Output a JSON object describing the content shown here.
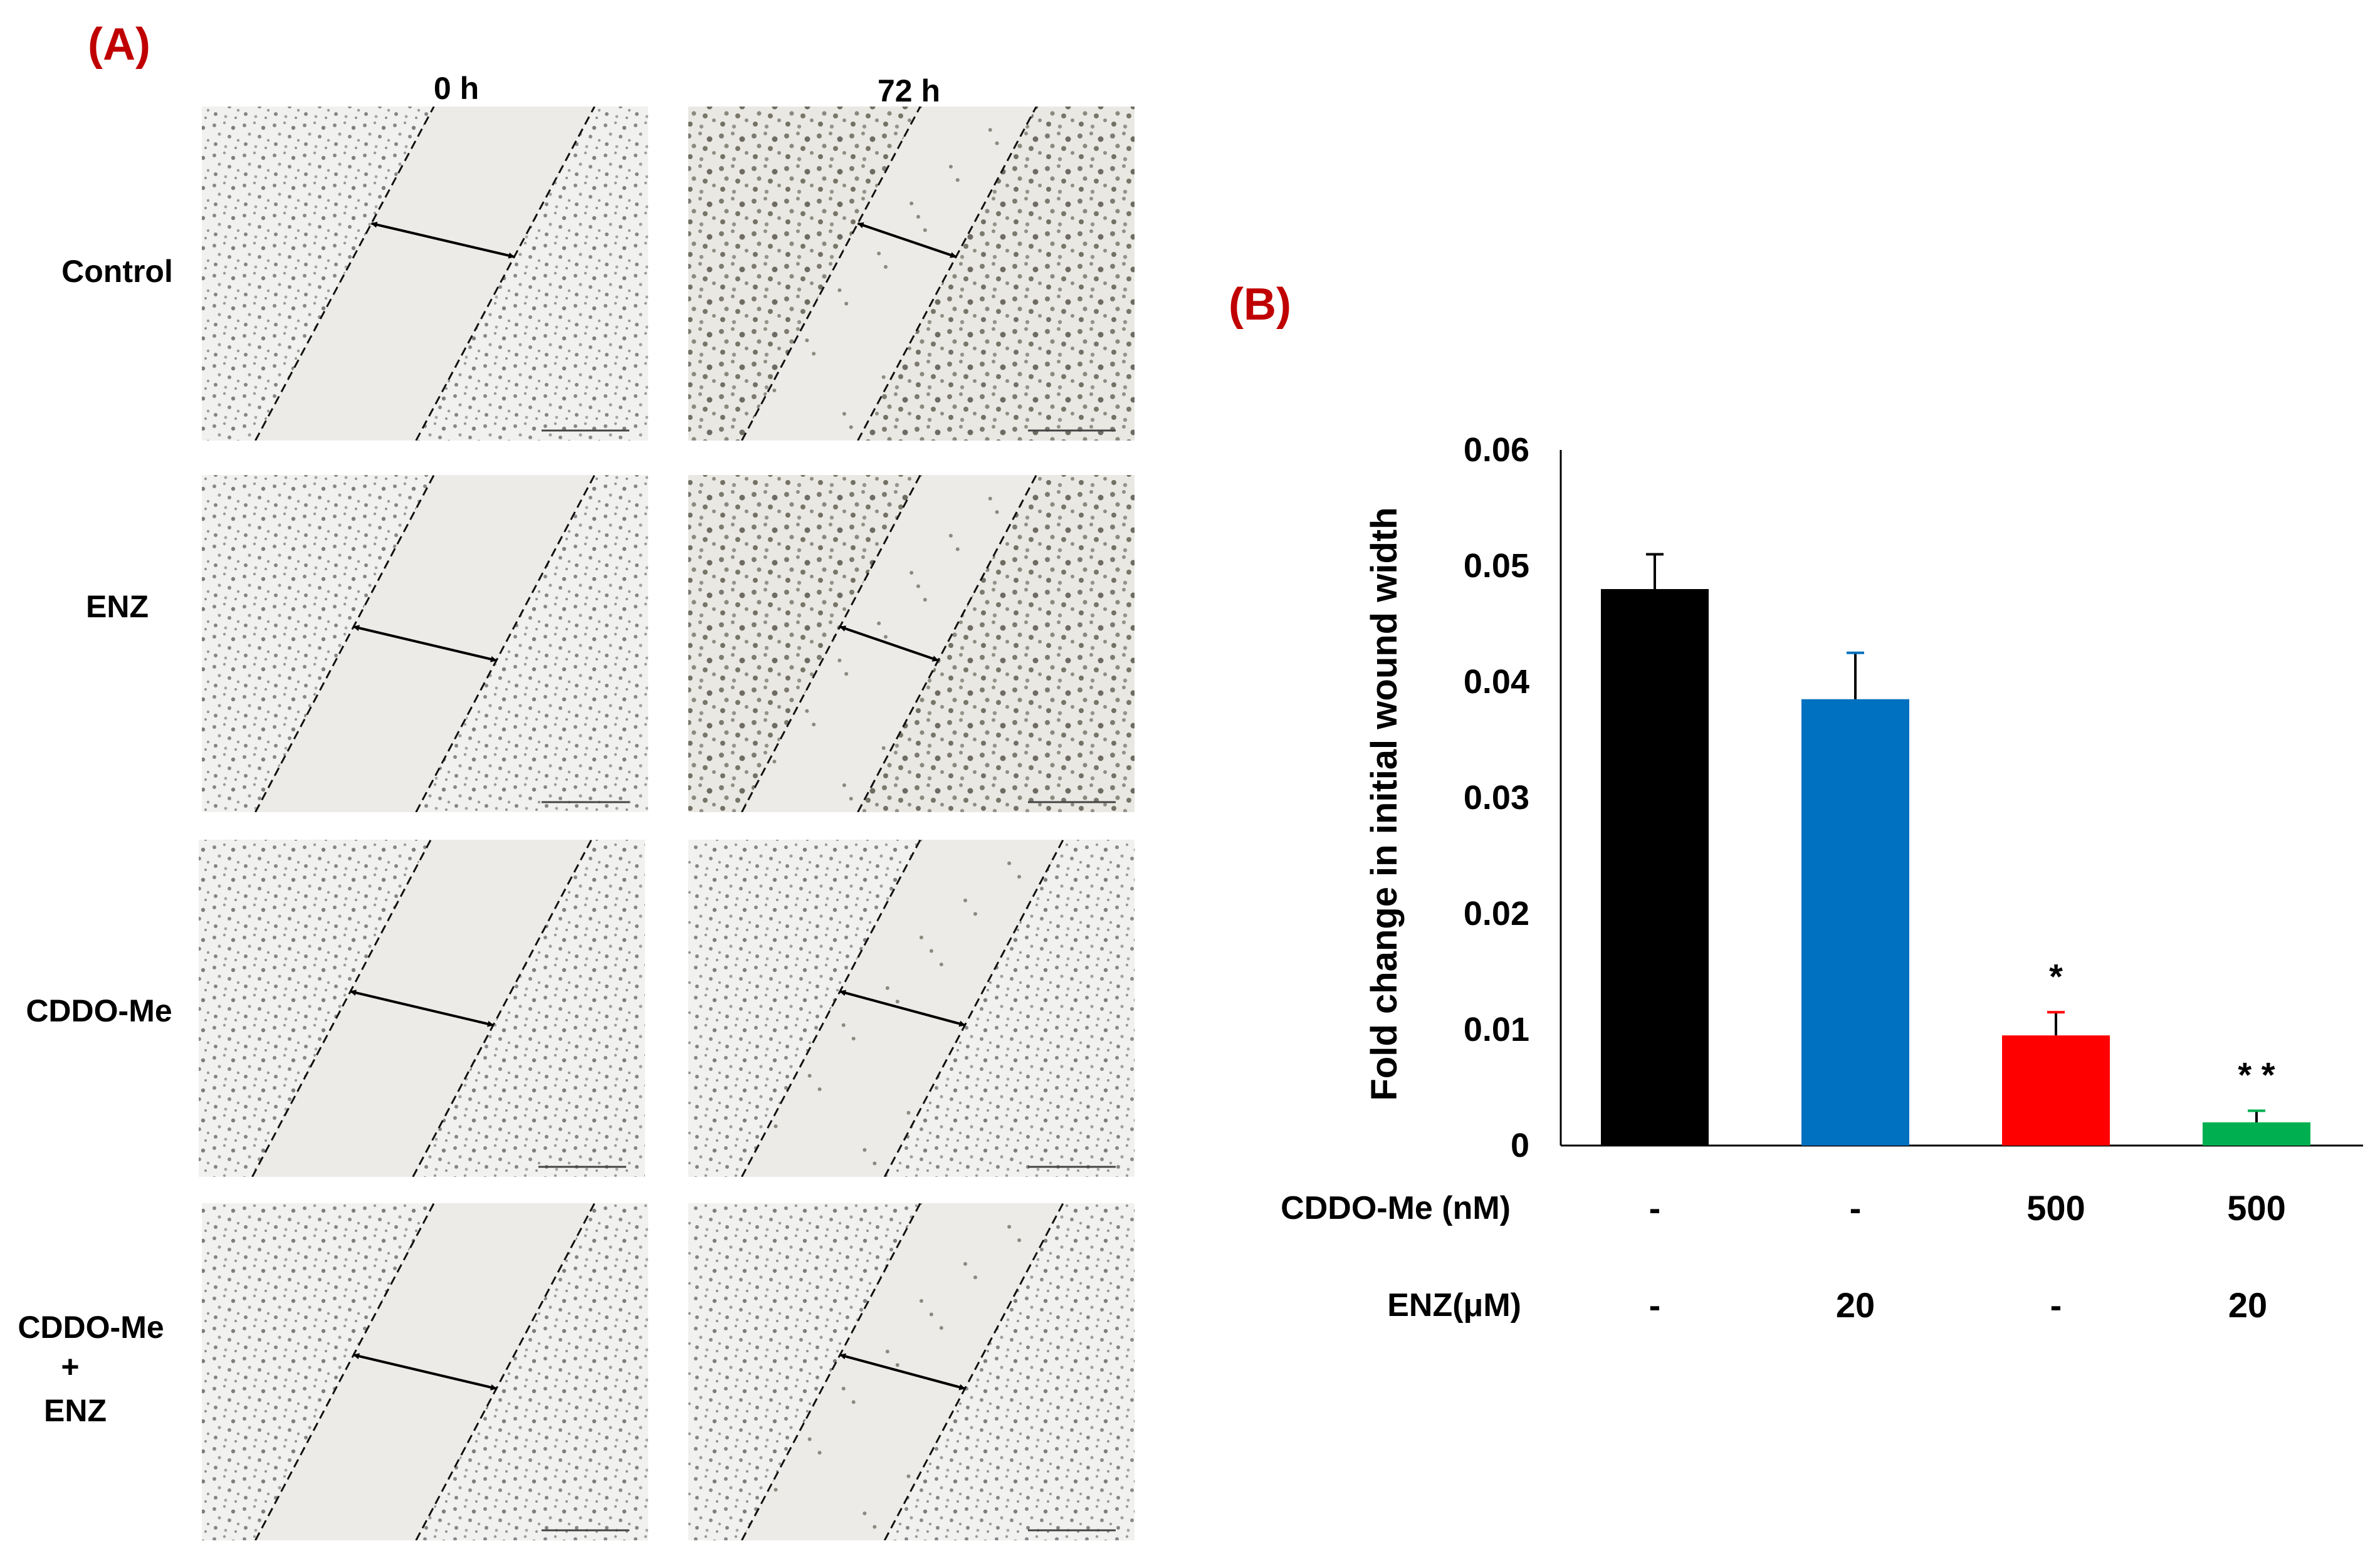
{
  "colors": {
    "panel_label": "#c00000",
    "bar_colors": [
      "#000000",
      "#0070c0",
      "#ff0000",
      "#00b050"
    ]
  },
  "panel_a": {
    "label": "(A)",
    "columns": [
      "0 h",
      "72 h"
    ],
    "rows": [
      "Control",
      "ENZ",
      "CDDO-Me",
      "CDDO-Me",
      "+",
      "ENZ"
    ]
  },
  "panel_b": {
    "label": "(B)"
  },
  "chart_data": {
    "type": "bar",
    "title": "",
    "ylabel": "Fold change in initial wound width",
    "xlabel": "",
    "ylim": [
      0,
      0.06
    ],
    "yticks": [
      "0.06",
      "0.05",
      "0.04",
      "0.03",
      "0.02",
      "0.01",
      "0"
    ],
    "grid": false,
    "legend": "none",
    "categories": [
      "Control",
      "ENZ",
      "CDDO-Me",
      "CDDO-Me + ENZ"
    ],
    "values": [
      0.048,
      0.0385,
      0.0095,
      0.002
    ],
    "errors": [
      0.003,
      0.004,
      0.002,
      0.001
    ],
    "significance": [
      "",
      "",
      "*",
      "* *"
    ],
    "condition_rows": [
      {
        "label": "CDDO-Me (nM)",
        "values": [
          "-",
          "-",
          "500",
          "500"
        ]
      },
      {
        "label": "ENZ(μM)",
        "values": [
          "-",
          "20",
          "-",
          "20"
        ]
      }
    ]
  }
}
